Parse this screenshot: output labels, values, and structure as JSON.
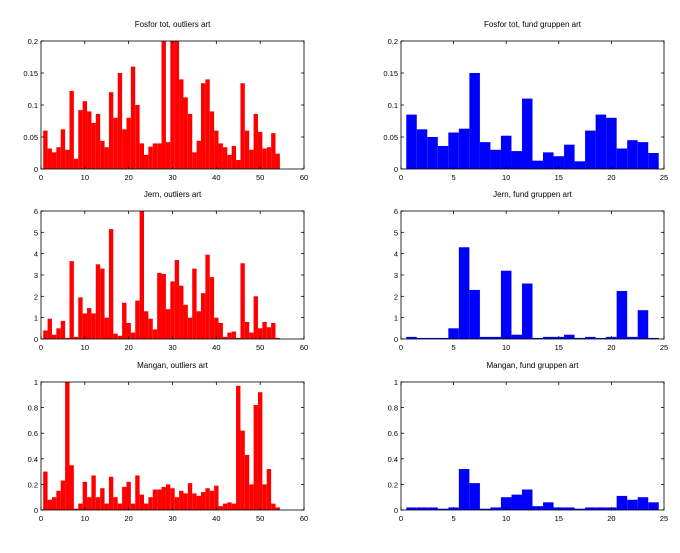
{
  "page": {
    "background": "#ffffff"
  },
  "chart_data": [
    {
      "type": "bar",
      "title": "Fosfor tot, outliers art",
      "color": "#ff0000",
      "xlim": [
        0,
        60
      ],
      "ylim": [
        0,
        0.2
      ],
      "xticks": [
        0,
        10,
        20,
        30,
        40,
        50,
        60
      ],
      "yticks": [
        0,
        0.05,
        0.1,
        0.15,
        0.2
      ],
      "ytick_labels": [
        "0",
        "0.05",
        "0.1",
        "0.15",
        "0.2"
      ],
      "x": [
        1,
        2,
        3,
        4,
        5,
        6,
        7,
        8,
        9,
        10,
        11,
        12,
        13,
        14,
        15,
        16,
        17,
        18,
        19,
        20,
        21,
        22,
        23,
        24,
        25,
        26,
        27,
        28,
        29,
        30,
        31,
        32,
        33,
        34,
        35,
        36,
        37,
        38,
        39,
        40,
        41,
        42,
        43,
        44,
        45,
        46,
        47,
        48,
        49,
        50,
        51,
        52,
        53,
        54
      ],
      "values": [
        0.06,
        0.032,
        0.026,
        0.034,
        0.062,
        0.03,
        0.122,
        0.016,
        0.092,
        0.106,
        0.09,
        0.072,
        0.086,
        0.044,
        0.034,
        0.12,
        0.08,
        0.15,
        0.062,
        0.08,
        0.16,
        0.1,
        0.04,
        0.022,
        0.035,
        0.04,
        0.04,
        0.2,
        0.042,
        0.2,
        0.2,
        0.14,
        0.112,
        0.086,
        0.026,
        0.044,
        0.134,
        0.14,
        0.09,
        0.06,
        0.04,
        0.034,
        0.022,
        0.036,
        0.014,
        0.134,
        0.06,
        0.03,
        0.086,
        0.058,
        0.032,
        0.034,
        0.056,
        0.024
      ]
    },
    {
      "type": "bar",
      "title": "Fosfor tot, fund gruppen art",
      "color": "#0000ff",
      "xlim": [
        0,
        25
      ],
      "ylim": [
        0,
        0.2
      ],
      "xticks": [
        0,
        5,
        10,
        15,
        20,
        25
      ],
      "yticks": [
        0,
        0.05,
        0.1,
        0.15,
        0.2
      ],
      "ytick_labels": [
        "0",
        "0.05",
        "0.1",
        "0.15",
        "0.2"
      ],
      "x": [
        1,
        2,
        3,
        4,
        5,
        6,
        7,
        8,
        9,
        10,
        11,
        12,
        13,
        14,
        15,
        16,
        17,
        18,
        19,
        20,
        21,
        22,
        23,
        24
      ],
      "values": [
        0.085,
        0.062,
        0.05,
        0.036,
        0.057,
        0.063,
        0.15,
        0.042,
        0.03,
        0.052,
        0.028,
        0.11,
        0.013,
        0.026,
        0.02,
        0.038,
        0.012,
        0.06,
        0.085,
        0.08,
        0.032,
        0.045,
        0.042,
        0.025
      ]
    },
    {
      "type": "bar",
      "title": "Jern, outliers art",
      "color": "#ff0000",
      "xlim": [
        0,
        60
      ],
      "ylim": [
        0,
        6
      ],
      "xticks": [
        0,
        10,
        20,
        30,
        40,
        50,
        60
      ],
      "yticks": [
        0,
        1,
        2,
        3,
        4,
        5,
        6
      ],
      "ytick_labels": [
        "0",
        "1",
        "2",
        "3",
        "4",
        "5",
        "6"
      ],
      "x": [
        1,
        2,
        3,
        4,
        5,
        6,
        7,
        8,
        9,
        10,
        11,
        12,
        13,
        14,
        15,
        16,
        17,
        18,
        19,
        20,
        21,
        22,
        23,
        24,
        25,
        26,
        27,
        28,
        29,
        30,
        31,
        32,
        33,
        34,
        35,
        36,
        37,
        38,
        39,
        40,
        41,
        42,
        43,
        44,
        45,
        46,
        47,
        48,
        49,
        50,
        51,
        52,
        53,
        54
      ],
      "values": [
        0.4,
        0.95,
        0.2,
        0.5,
        0.85,
        0.05,
        3.65,
        0.1,
        1.95,
        1.2,
        1.45,
        1.2,
        3.5,
        3.3,
        1.0,
        5.15,
        0.25,
        0.15,
        1.7,
        0.75,
        0.3,
        1.8,
        6.0,
        1.3,
        0.95,
        0.45,
        3.1,
        3.05,
        1.4,
        2.7,
        3.7,
        2.5,
        1.6,
        1.0,
        3.3,
        1.3,
        2.15,
        3.95,
        2.9,
        1.0,
        0.75,
        0.1,
        0.3,
        0.35,
        0.05,
        3.55,
        0.8,
        0.3,
        2.0,
        0.5,
        0.8,
        0.55,
        0.75,
        0.05
      ]
    },
    {
      "type": "bar",
      "title": "Jern, fund gruppen art",
      "color": "#0000ff",
      "xlim": [
        0,
        25
      ],
      "ylim": [
        0,
        6
      ],
      "xticks": [
        0,
        5,
        10,
        15,
        20,
        25
      ],
      "yticks": [
        0,
        1,
        2,
        3,
        4,
        5,
        6
      ],
      "ytick_labels": [
        "0",
        "1",
        "2",
        "3",
        "4",
        "5",
        "6"
      ],
      "x": [
        1,
        2,
        3,
        4,
        5,
        6,
        7,
        8,
        9,
        10,
        11,
        12,
        13,
        14,
        15,
        16,
        17,
        18,
        19,
        20,
        21,
        22,
        23,
        24
      ],
      "values": [
        0.1,
        0.05,
        0.05,
        0.05,
        0.5,
        4.3,
        2.3,
        0.1,
        0.1,
        3.2,
        0.2,
        2.6,
        0.05,
        0.1,
        0.1,
        0.2,
        0.05,
        0.1,
        0.05,
        0.1,
        2.25,
        0.1,
        1.35,
        0.05
      ]
    },
    {
      "type": "bar",
      "title": "Mangan, outliers art",
      "color": "#ff0000",
      "xlim": [
        0,
        60
      ],
      "ylim": [
        0,
        1
      ],
      "xticks": [
        0,
        10,
        20,
        30,
        40,
        50,
        60
      ],
      "yticks": [
        0,
        0.2,
        0.4,
        0.6,
        0.8,
        1
      ],
      "ytick_labels": [
        "0",
        "0.2",
        "0.4",
        "0.6",
        "0.8",
        "1"
      ],
      "x": [
        1,
        2,
        3,
        4,
        5,
        6,
        7,
        8,
        9,
        10,
        11,
        12,
        13,
        14,
        15,
        16,
        17,
        18,
        19,
        20,
        21,
        22,
        23,
        24,
        25,
        26,
        27,
        28,
        29,
        30,
        31,
        32,
        33,
        34,
        35,
        36,
        37,
        38,
        39,
        40,
        41,
        42,
        43,
        44,
        45,
        46,
        47,
        48,
        49,
        50,
        51,
        52,
        53,
        54
      ],
      "values": [
        0.3,
        0.08,
        0.1,
        0.15,
        0.23,
        1.0,
        0.35,
        0.01,
        0.05,
        0.22,
        0.1,
        0.27,
        0.1,
        0.17,
        0.05,
        0.26,
        0.1,
        0.05,
        0.18,
        0.22,
        0.05,
        0.27,
        0.12,
        0.05,
        0.1,
        0.16,
        0.16,
        0.18,
        0.2,
        0.17,
        0.1,
        0.15,
        0.13,
        0.21,
        0.13,
        0.11,
        0.14,
        0.17,
        0.15,
        0.19,
        0.03,
        0.05,
        0.06,
        0.05,
        0.97,
        0.62,
        0.43,
        0.2,
        0.82,
        0.92,
        0.2,
        0.32,
        0.05,
        0.02
      ]
    },
    {
      "type": "bar",
      "title": "Mangan, fund gruppen art",
      "color": "#0000ff",
      "xlim": [
        0,
        25
      ],
      "ylim": [
        0,
        1
      ],
      "xticks": [
        0,
        5,
        10,
        15,
        20,
        25
      ],
      "yticks": [
        0,
        0.2,
        0.4,
        0.6,
        0.8,
        1
      ],
      "ytick_labels": [
        "0",
        "0.2",
        "0.4",
        "0.6",
        "0.8",
        "1"
      ],
      "x": [
        1,
        2,
        3,
        4,
        5,
        6,
        7,
        8,
        9,
        10,
        11,
        12,
        13,
        14,
        15,
        16,
        17,
        18,
        19,
        20,
        21,
        22,
        23,
        24
      ],
      "values": [
        0.02,
        0.02,
        0.02,
        0.01,
        0.02,
        0.32,
        0.21,
        0.01,
        0.02,
        0.1,
        0.12,
        0.16,
        0.03,
        0.06,
        0.02,
        0.02,
        0.01,
        0.02,
        0.02,
        0.02,
        0.11,
        0.08,
        0.1,
        0.06
      ]
    }
  ]
}
